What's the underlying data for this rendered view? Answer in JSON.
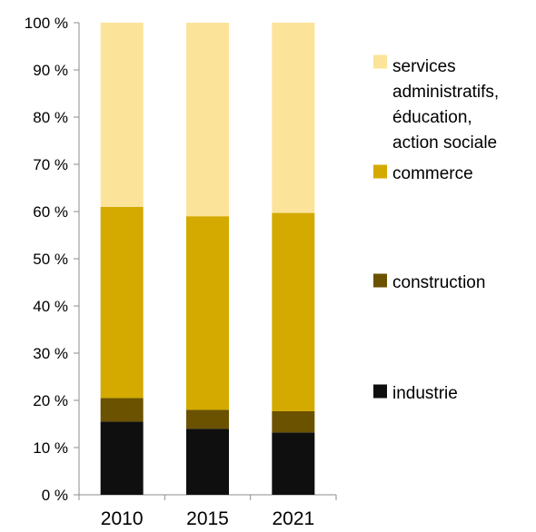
{
  "chart_data": {
    "type": "bar",
    "stacked": true,
    "percent": true,
    "categories": [
      "2010",
      "2015",
      "2021"
    ],
    "series": [
      {
        "name": "industrie",
        "values": [
          15.5,
          14.0,
          13.2
        ],
        "color": "#0f0f0f"
      },
      {
        "name": "construction",
        "values": [
          5.0,
          4.0,
          4.5
        ],
        "color": "#6b5200"
      },
      {
        "name": "commerce",
        "values": [
          40.5,
          41.0,
          42.0
        ],
        "color": "#d4a900"
      },
      {
        "name": "services administratifs, éducation, action sociale",
        "values": [
          39.0,
          41.0,
          40.3
        ],
        "color": "#fbe49a"
      }
    ],
    "y_ticks": [
      "0 %",
      "10 %",
      "20 %",
      "30 %",
      "40 %",
      "50 %",
      "60 %",
      "70 %",
      "80 %",
      "90 %",
      "100 %"
    ],
    "ylim": [
      0,
      100
    ],
    "legend_position": "right",
    "legend_label_lines": [
      [
        "industrie"
      ],
      [
        "construction"
      ],
      [
        "commerce"
      ],
      [
        "services",
        "administratifs,",
        "éducation,",
        "action sociale"
      ]
    ],
    "grid": false
  }
}
